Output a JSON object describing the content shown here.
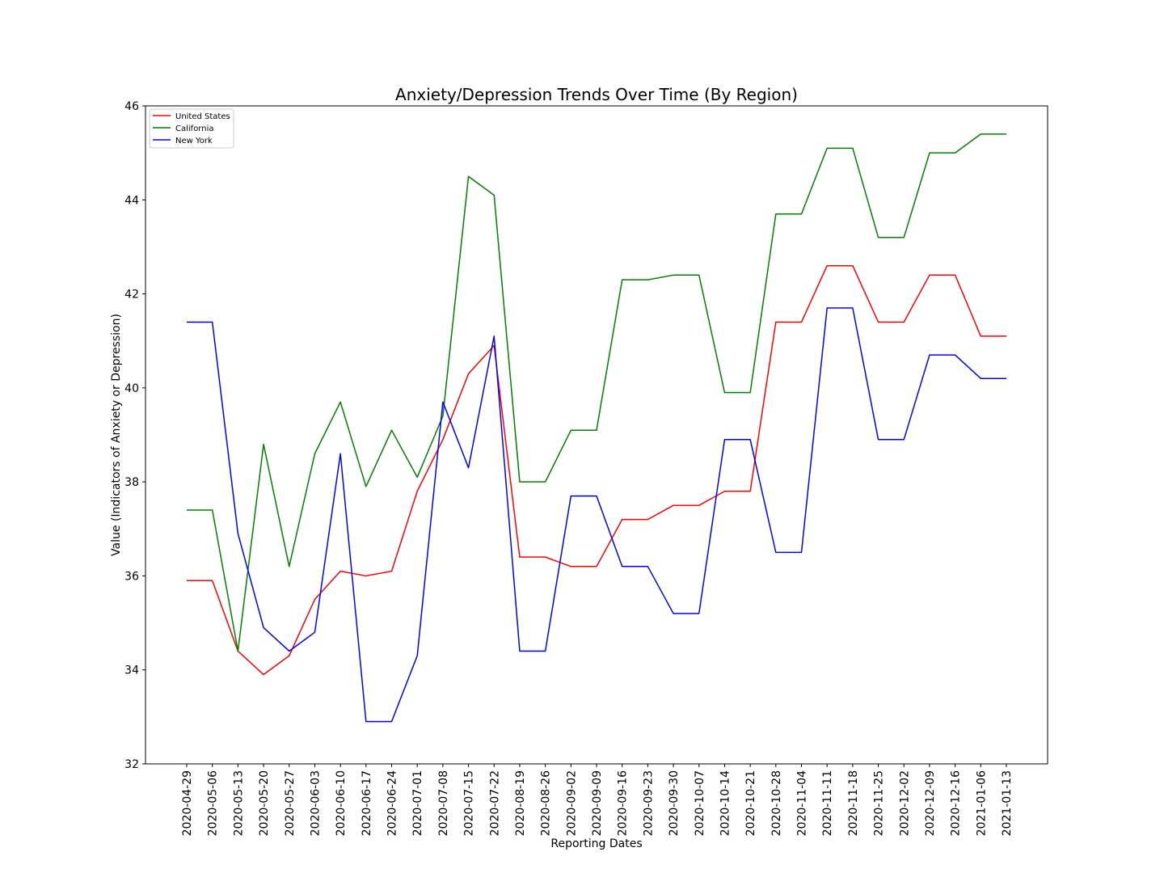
{
  "chart_data": {
    "type": "line",
    "title": "Anxiety/Depression Trends Over Time (By Region)",
    "xlabel": "Reporting Dates",
    "ylabel": "Value (Indicators of Anxiety or Depression)",
    "ylim": [
      32,
      46
    ],
    "yticks": [
      32,
      34,
      36,
      38,
      40,
      42,
      44,
      46
    ],
    "grid": false,
    "legend_position": "top-left",
    "x": [
      "2020-04-29",
      "2020-05-06",
      "2020-05-13",
      "2020-05-20",
      "2020-05-27",
      "2020-06-03",
      "2020-06-10",
      "2020-06-17",
      "2020-06-24",
      "2020-07-01",
      "2020-07-08",
      "2020-07-15",
      "2020-07-22",
      "2020-08-19",
      "2020-08-26",
      "2020-09-02",
      "2020-09-09",
      "2020-09-16",
      "2020-09-23",
      "2020-09-30",
      "2020-10-07",
      "2020-10-14",
      "2020-10-21",
      "2020-10-28",
      "2020-11-04",
      "2020-11-11",
      "2020-11-18",
      "2020-11-25",
      "2020-12-02",
      "2020-12-09",
      "2020-12-16",
      "2021-01-06",
      "2021-01-13"
    ],
    "series": [
      {
        "name": "United States",
        "color": "#ff0000",
        "values": [
          35.9,
          35.9,
          34.4,
          33.9,
          34.3,
          35.5,
          36.1,
          36.0,
          36.1,
          37.8,
          38.9,
          40.3,
          40.9,
          36.4,
          36.4,
          36.2,
          36.2,
          37.2,
          37.2,
          37.5,
          37.5,
          37.8,
          37.8,
          41.4,
          41.4,
          42.6,
          42.6,
          41.4,
          41.4,
          42.4,
          42.4,
          41.1,
          41.1
        ]
      },
      {
        "name": "California",
        "color": "#008000",
        "values": [
          37.4,
          37.4,
          34.4,
          38.8,
          36.2,
          38.6,
          39.7,
          37.9,
          39.1,
          38.1,
          39.4,
          44.5,
          44.1,
          38.0,
          38.0,
          39.1,
          39.1,
          42.3,
          42.3,
          42.4,
          42.4,
          39.9,
          39.9,
          43.7,
          43.7,
          45.1,
          45.1,
          43.2,
          43.2,
          45.0,
          45.0,
          45.4,
          45.4
        ]
      },
      {
        "name": "New York",
        "color": "#0000ff",
        "values": [
          41.4,
          41.4,
          36.9,
          34.9,
          34.4,
          34.8,
          38.6,
          32.9,
          32.9,
          34.3,
          39.7,
          38.3,
          41.1,
          34.4,
          34.4,
          37.7,
          37.7,
          36.2,
          36.2,
          35.2,
          35.2,
          38.9,
          38.9,
          36.5,
          36.5,
          41.7,
          41.7,
          38.9,
          38.9,
          40.7,
          40.7,
          40.2,
          40.2
        ]
      }
    ]
  }
}
